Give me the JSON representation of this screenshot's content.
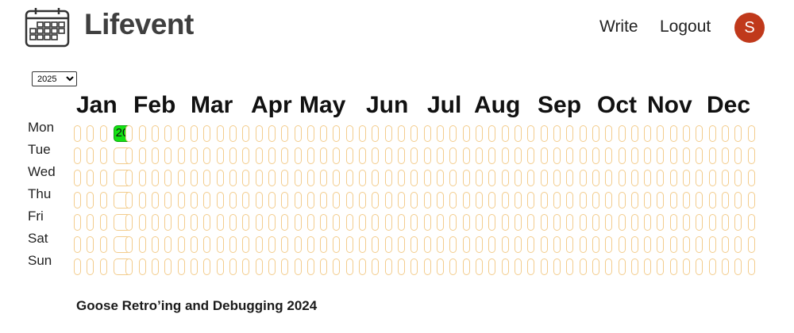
{
  "app": {
    "name": "Lifevent"
  },
  "nav": {
    "write_label": "Write",
    "logout_label": "Logout"
  },
  "user": {
    "avatar_initial": "S",
    "avatar_color": "#c0391b"
  },
  "year_select": {
    "selected": "2025"
  },
  "months": [
    "Jan",
    "Feb",
    "Mar",
    "Apr",
    "May",
    "Jun",
    "Jul",
    "Aug",
    "Sep",
    "Oct",
    "Nov",
    "Dec"
  ],
  "weekdays": [
    "Mon",
    "Tue",
    "Wed",
    "Thu",
    "Fri",
    "Sat",
    "Sun"
  ],
  "calendar": {
    "weeks": 53,
    "cell_border_color": "#f3cc8c",
    "highlight_color": "#13e213",
    "highlighted_day": {
      "week": 3,
      "weekday": 0,
      "label": "20"
    }
  },
  "event": {
    "title": "Goose Retro’ing and Debugging 2024"
  }
}
